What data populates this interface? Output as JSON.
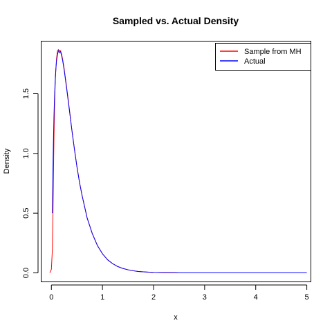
{
  "chart_data": {
    "type": "line",
    "title": "Sampled vs. Actual Density",
    "xlabel": "x",
    "ylabel": "Density",
    "xlim": [
      -0.2,
      5.08
    ],
    "ylim": [
      -0.075,
      1.94
    ],
    "x_ticks": [
      0,
      1,
      2,
      3,
      4,
      5
    ],
    "y_ticks": [
      0.0,
      0.5,
      1.0,
      1.5
    ],
    "x_tick_labels": [
      "0",
      "1",
      "2",
      "3",
      "4",
      "5"
    ],
    "y_tick_labels": [
      "0.0",
      "0.5",
      "1.0",
      "1.5"
    ],
    "grid": false,
    "legend_position": "top-right",
    "series": [
      {
        "name": "Sample from MH",
        "color": "#ff0000",
        "x": [
          -0.03,
          0.0,
          0.02,
          0.03,
          0.04,
          0.05,
          0.06,
          0.07,
          0.08,
          0.1,
          0.12,
          0.14,
          0.16,
          0.18,
          0.2,
          0.22,
          0.25,
          0.3,
          0.35,
          0.4,
          0.45,
          0.5,
          0.55,
          0.6,
          0.7,
          0.8,
          0.9,
          1.0,
          1.1,
          1.2,
          1.3,
          1.4,
          1.5,
          1.6,
          1.7,
          1.8,
          2.0,
          2.2,
          2.5,
          2.8,
          3.0,
          3.3,
          3.72
        ],
        "y": [
          0.0,
          0.03,
          0.2,
          0.45,
          0.8,
          1.12,
          1.35,
          1.52,
          1.64,
          1.79,
          1.86,
          1.87,
          1.84,
          1.86,
          1.83,
          1.79,
          1.71,
          1.55,
          1.38,
          1.2,
          1.04,
          0.89,
          0.76,
          0.65,
          0.46,
          0.33,
          0.23,
          0.16,
          0.11,
          0.077,
          0.053,
          0.037,
          0.026,
          0.018,
          0.012,
          0.009,
          0.004,
          0.002,
          0.0006,
          0.0002,
          0.0001,
          0.0,
          0.0
        ]
      },
      {
        "name": "Actual",
        "color": "#0000ff",
        "x": [
          0.02,
          0.03,
          0.04,
          0.05,
          0.06,
          0.07,
          0.08,
          0.09,
          0.1,
          0.12,
          0.14,
          0.16,
          0.18,
          0.2,
          0.22,
          0.25,
          0.3,
          0.35,
          0.4,
          0.45,
          0.5,
          0.55,
          0.6,
          0.7,
          0.8,
          0.9,
          1.0,
          1.1,
          1.2,
          1.3,
          1.4,
          1.5,
          1.6,
          1.7,
          1.8,
          2.0,
          2.2,
          2.5,
          3.0,
          3.5,
          4.0,
          4.5,
          5.0
        ],
        "y": [
          0.5,
          0.84,
          1.1,
          1.3,
          1.45,
          1.56,
          1.65,
          1.72,
          1.77,
          1.83,
          1.86,
          1.86,
          1.85,
          1.82,
          1.78,
          1.7,
          1.54,
          1.37,
          1.2,
          1.04,
          0.89,
          0.76,
          0.65,
          0.46,
          0.33,
          0.23,
          0.16,
          0.11,
          0.077,
          0.053,
          0.037,
          0.026,
          0.018,
          0.012,
          0.009,
          0.004,
          0.002,
          0.0006,
          0.0001,
          0.0,
          0.0,
          0.0,
          0.0
        ]
      }
    ]
  }
}
